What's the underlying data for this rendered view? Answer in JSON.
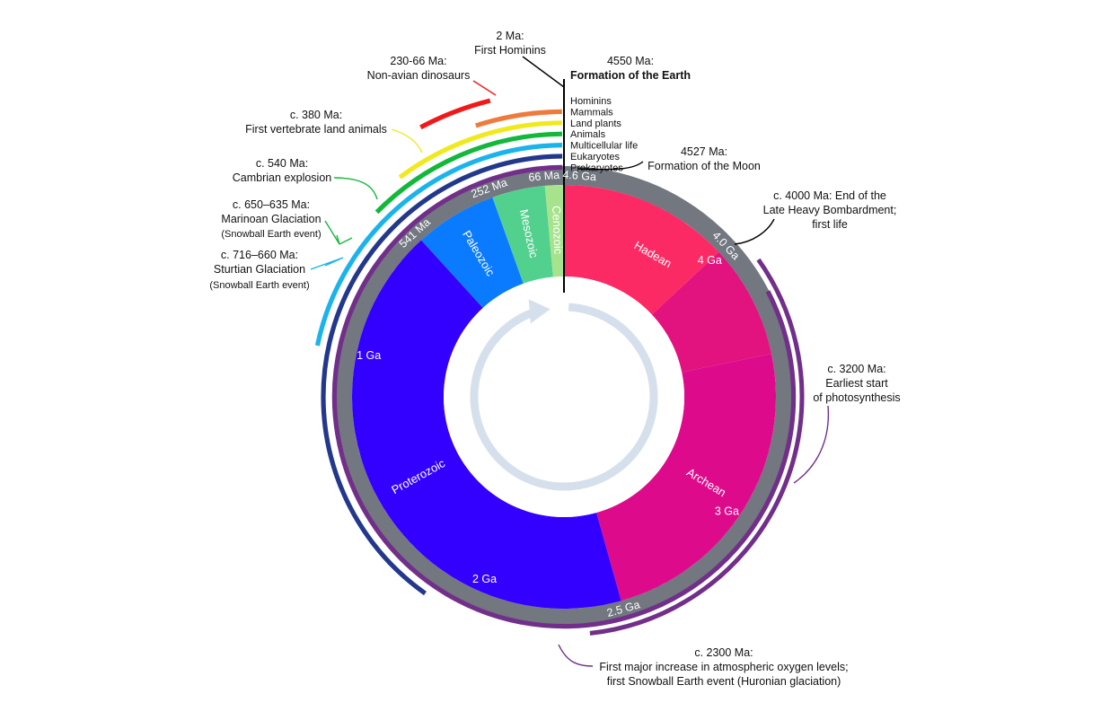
{
  "chart_data": {
    "type": "timeline-clock",
    "total_ma": 4600,
    "eons": [
      {
        "name": "Hadean",
        "start_ma": 4600,
        "end_ma": 4000,
        "color": "#fc2a64"
      },
      {
        "name": "",
        "start_ma": 4000,
        "end_ma": 3600,
        "color": "#e2127f"
      },
      {
        "name": "Archean",
        "start_ma": 3600,
        "end_ma": 2500,
        "color": "#dd0b8c"
      },
      {
        "name": "Proterozoic",
        "start_ma": 2500,
        "end_ma": 541,
        "color": "#3300ff"
      },
      {
        "name": "Paleozoic",
        "start_ma": 541,
        "end_ma": 252,
        "color": "#0a7bff"
      },
      {
        "name": "Mesozoic",
        "start_ma": 252,
        "end_ma": 66,
        "color": "#52d18e"
      },
      {
        "name": "Cenozoic",
        "start_ma": 66,
        "end_ma": 0,
        "color": "#a6e38c"
      }
    ],
    "ring_labels": [
      {
        "text": "4.6 Ga",
        "at_ma": 4550
      },
      {
        "text": "4.0 Ga",
        "at_ma": 4000
      },
      {
        "text": "2.5 Ga",
        "at_ma": 2500
      },
      {
        "text": "541 Ma",
        "at_ma": 541
      },
      {
        "text": "252 Ma",
        "at_ma": 252
      },
      {
        "text": "66 Ma",
        "at_ma": 66
      }
    ],
    "inner_ticks": [
      {
        "text": "4 Ga",
        "at_ma": 4000
      },
      {
        "text": "3 Ga",
        "at_ma": 3000
      },
      {
        "text": "2 Ga",
        "at_ma": 2000
      },
      {
        "text": "1 Ga",
        "at_ma": 1000
      }
    ],
    "life_arcs": [
      {
        "name": "Hominins",
        "start_ma": 2,
        "color": "#f21818"
      },
      {
        "name": "Mammals",
        "start_ma": 230,
        "color": "#ef7a3a"
      },
      {
        "name": "Land plants",
        "start_ma": 470,
        "color": "#f0ea1c"
      },
      {
        "name": "Animals",
        "start_ma": 580,
        "color": "#12b83a"
      },
      {
        "name": "Multicellular life",
        "start_ma": 1000,
        "color": "#1ab4ec"
      },
      {
        "name": "Eukaryotes",
        "start_ma": 1850,
        "color": "#23388c"
      },
      {
        "name": "Prokaryotes",
        "start_ma": 3800,
        "color": "#722f8a"
      }
    ],
    "annotations": [
      {
        "lines": [
          "2 Ma:",
          "First Hominins"
        ]
      },
      {
        "lines": [
          "4550 Ma:"
        ],
        "bold_line": "Formation of the Earth"
      },
      {
        "lines": [
          "230-66 Ma:",
          "Non-avian dinosaurs"
        ]
      },
      {
        "lines": [
          "c. 380 Ma:",
          "First vertebrate land animals"
        ]
      },
      {
        "lines": [
          "c. 540 Ma:",
          "Cambrian explosion"
        ]
      },
      {
        "lines": [
          "c. 650–635 Ma:",
          "Marinoan Glaciation"
        ],
        "small": "(Snowball Earth event)"
      },
      {
        "lines": [
          "c. 716–660 Ma:",
          "Sturtian Glaciation"
        ],
        "small": "(Snowball Earth event)"
      },
      {
        "lines": [
          "4527 Ma:",
          "Formation of the Moon"
        ]
      },
      {
        "lines": [
          "c. 4000 Ma: End of the",
          "Late Heavy Bombardment;",
          "first life"
        ]
      },
      {
        "lines": [
          "c. 3200 Ma:",
          "Earliest start",
          "of photosynthesis"
        ]
      },
      {
        "lines": [
          "c. 2300 Ma:",
          "First major increase in atmospheric oxygen levels;",
          "first Snowball Earth event (Huronian glaciation)"
        ]
      }
    ]
  }
}
